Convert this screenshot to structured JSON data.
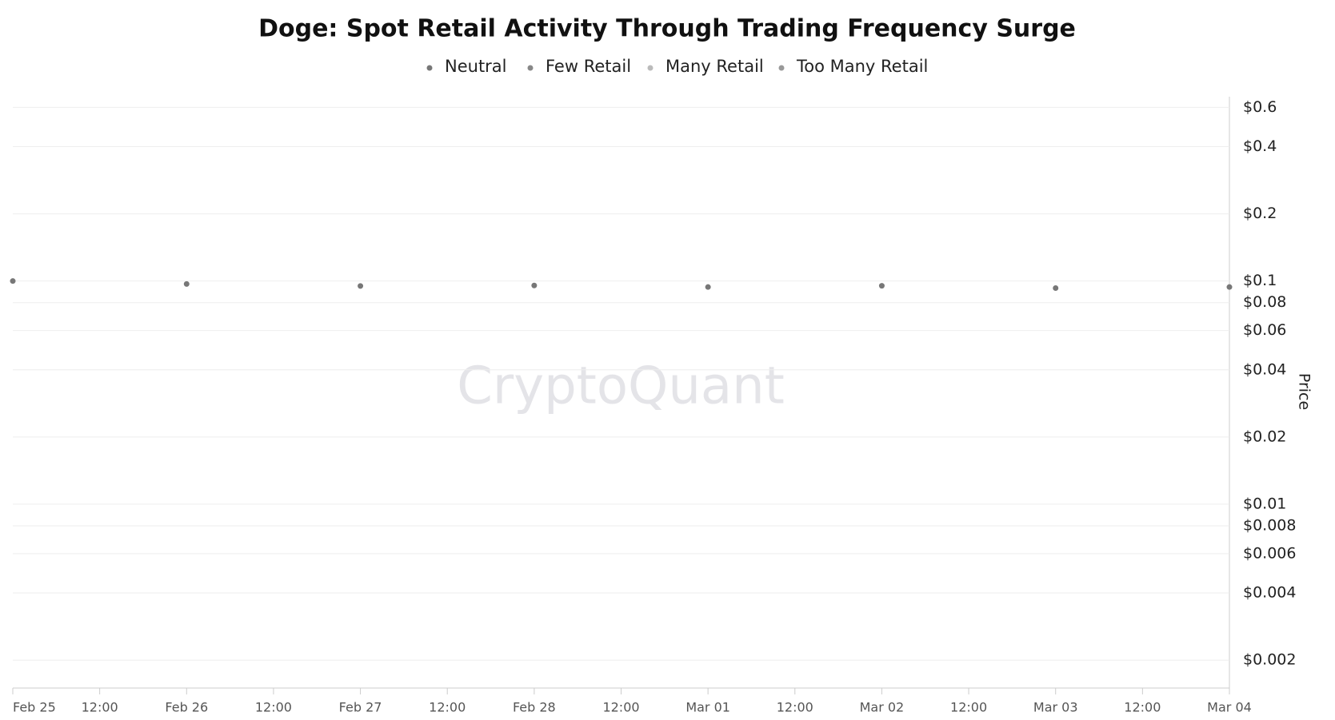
{
  "chart_data": {
    "type": "scatter",
    "title": "Doge: Spot Retail Activity Through Trading Frequency Surge",
    "watermark": "CryptoQuant",
    "y_label": "Price",
    "categories": [
      "Feb 25",
      "12:00",
      "Feb 26",
      "12:00",
      "Feb 27",
      "12:00",
      "Feb 28",
      "12:00",
      "Mar 01",
      "12:00",
      "Mar 02",
      "12:00",
      "Mar 03",
      "12:00",
      "Mar 04"
    ],
    "series": [
      {
        "name": "Neutral",
        "color": "#777777",
        "values": [
          0.1,
          null,
          0.097,
          null,
          0.095,
          null,
          0.0955,
          null,
          0.094,
          null,
          0.0952,
          null,
          0.093,
          null,
          0.094
        ]
      },
      {
        "name": "Few Retail",
        "color": "#888888",
        "values": [
          null,
          null,
          null,
          null,
          null,
          null,
          null,
          null,
          null,
          null,
          null,
          null,
          null,
          null,
          null
        ]
      },
      {
        "name": "Many Retail",
        "color": "#bbbbbb",
        "values": [
          null,
          null,
          null,
          null,
          null,
          null,
          null,
          null,
          null,
          null,
          null,
          null,
          null,
          null,
          null
        ]
      },
      {
        "name": "Too Many Retail",
        "color": "#999999",
        "values": [
          null,
          null,
          null,
          null,
          null,
          null,
          null,
          null,
          null,
          null,
          null,
          null,
          null,
          null,
          null
        ]
      }
    ],
    "log_scale": true,
    "grid": true,
    "ylim": [
      0.0015,
      0.67
    ],
    "yticks": [
      {
        "value": 0.002,
        "label": "$0.002"
      },
      {
        "value": 0.004,
        "label": "$0.004"
      },
      {
        "value": 0.006,
        "label": "$0.006"
      },
      {
        "value": 0.008,
        "label": "$0.008"
      },
      {
        "value": 0.01,
        "label": "$0.01"
      },
      {
        "value": 0.02,
        "label": "$0.02"
      },
      {
        "value": 0.04,
        "label": "$0.04"
      },
      {
        "value": 0.06,
        "label": "$0.06"
      },
      {
        "value": 0.08,
        "label": "$0.08"
      },
      {
        "value": 0.1,
        "label": "$0.1"
      },
      {
        "value": 0.2,
        "label": "$0.2"
      },
      {
        "value": 0.4,
        "label": "$0.4"
      },
      {
        "value": 0.6,
        "label": "$0.6"
      }
    ]
  }
}
